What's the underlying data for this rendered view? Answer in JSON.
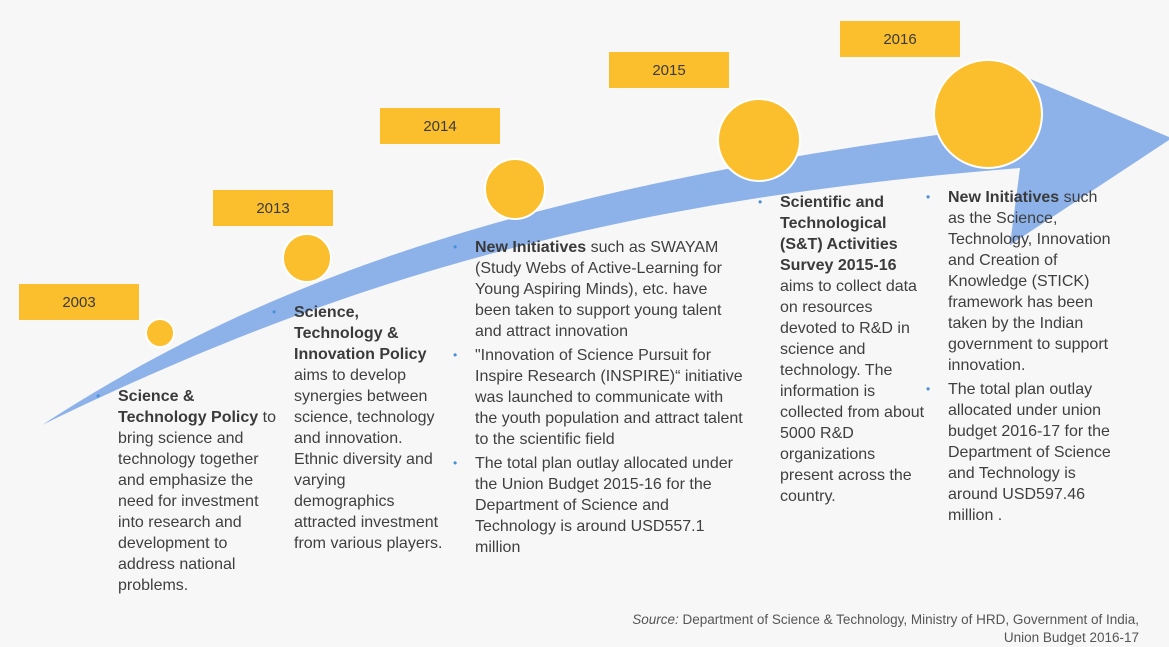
{
  "colors": {
    "arrow": "#8db2ea",
    "marker": "#fbbf2e",
    "marker_stroke": "#ffffff",
    "bullet": "#4a90d9"
  },
  "years": [
    "2003",
    "2013",
    "2014",
    "2015",
    "2016"
  ],
  "columns": [
    {
      "bullets": [
        {
          "bold": "Science & Technology Policy",
          "text": " to bring science and technology together and emphasize the need for investment into research and development to address national problems."
        }
      ]
    },
    {
      "bullets": [
        {
          "bold": "Science, Technology & Innovation Policy",
          "text": " aims to develop synergies between science, technology and innovation. Ethnic diversity and varying demographics attracted investment from various players."
        }
      ]
    },
    {
      "bullets": [
        {
          "bold": "New Initiatives",
          "text": " such as SWAYAM (Study Webs of Active-Learning for Young Aspiring Minds), etc. have been taken to support young talent and attract innovation"
        },
        {
          "bold": "",
          "text": "\"Innovation of Science Pursuit for Inspire Research (INSPIRE)“ initiative was launched to communicate with the youth population and attract talent to the scientific field"
        },
        {
          "bold": "",
          "text": "The total plan outlay allocated under the Union Budget 2015-16 for the Department of Science and Technology is around USD557.1 million"
        }
      ]
    },
    {
      "bullets": [
        {
          "bold": "Scientific and Technological (S&T) Activities Survey 2015-16",
          "text": " aims to collect data on resources devoted to R&D in science and technology. The information is collected from about 5000 R&D organizations present across the country."
        }
      ]
    },
    {
      "bullets": [
        {
          "bold": "New Initiatives",
          "text": " such as the Science, Technology, Innovation and Creation of Knowledge (STICK) framework has been taken by the Indian government to support innovation."
        },
        {
          "bold": "",
          "text": "The total plan outlay allocated under union budget 2016-17 for the Department of Science and Technology is around USD597.46 million ."
        }
      ]
    }
  ],
  "source": {
    "label": "Source:",
    "text": " Department of Science & Technology, Ministry of HRD, Government of India,",
    "text2": "Union Budget 2016-17"
  }
}
